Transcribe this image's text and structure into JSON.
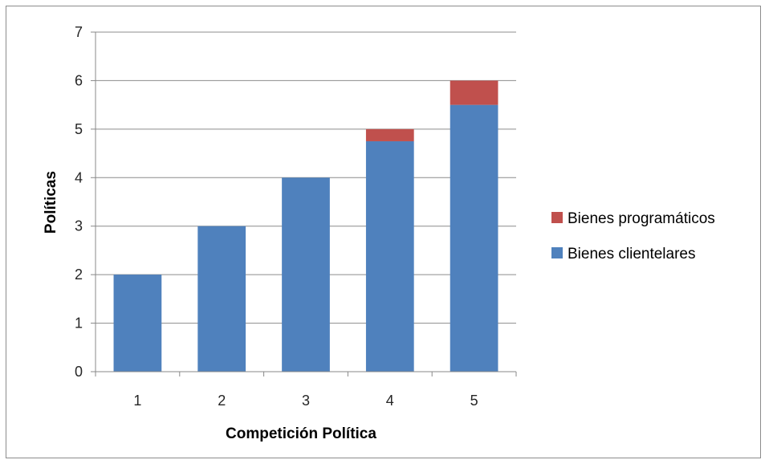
{
  "chart_data": {
    "type": "bar",
    "stacked": true,
    "categories": [
      "1",
      "2",
      "3",
      "4",
      "5"
    ],
    "series": [
      {
        "name": "Bienes clientelares",
        "color": "#4f81bd",
        "values": [
          2,
          3,
          4,
          4.75,
          5.5
        ]
      },
      {
        "name": "Bienes programáticos",
        "color": "#c0504d",
        "values": [
          0,
          0,
          0,
          0.25,
          0.5
        ]
      }
    ],
    "xlabel": "Competición Política",
    "ylabel": "Políticas",
    "ylim": [
      0,
      7
    ],
    "yticks": [
      "0",
      "1",
      "2",
      "3",
      "4",
      "5",
      "6",
      "7"
    ],
    "grid": true,
    "legend_position": "right",
    "legend_order": [
      "Bienes programáticos",
      "Bienes clientelares"
    ]
  }
}
